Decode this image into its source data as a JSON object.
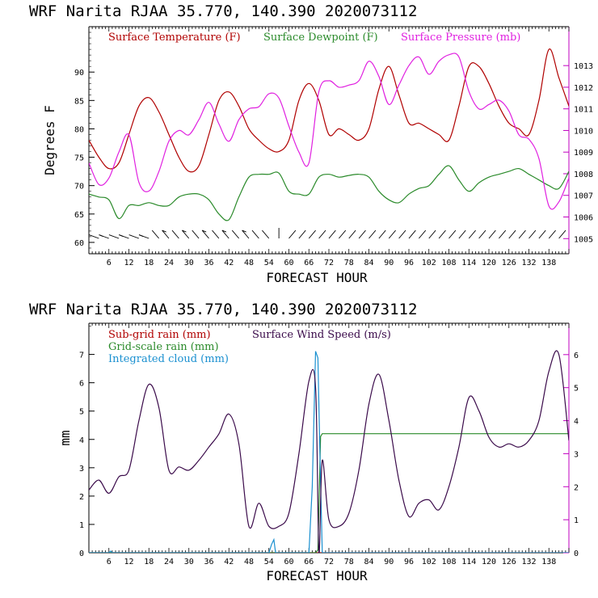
{
  "chart_data": [
    {
      "type": "line",
      "title": "WRF   Narita RJAA    35.770, 140.390   2020073112",
      "xlabel": "FORECAST HOUR",
      "ylabel": "Degrees F",
      "xlim": [
        0,
        144
      ],
      "ylim": [
        58,
        98
      ],
      "y2lim": [
        1004.3,
        1014.8
      ],
      "xticks": [
        "6",
        "12",
        "18",
        "24",
        "30",
        "36",
        "42",
        "48",
        "54",
        "60",
        "66",
        "72",
        "78",
        "84",
        "90",
        "96",
        "102",
        "108",
        "114",
        "120",
        "126",
        "132",
        "138"
      ],
      "yticks": [
        "60",
        "65",
        "70",
        "75",
        "80",
        "85",
        "90"
      ],
      "y2ticks": [
        "1005",
        "1006",
        "1007",
        "1008",
        "1009",
        "1010",
        "1011",
        "1012",
        "1013"
      ],
      "legend": "top",
      "grid": false,
      "series": [
        {
          "name": "Surface Temperature (F)",
          "color": "#b00000",
          "axis": "left",
          "x": [
            0,
            3,
            6,
            9,
            12,
            15,
            18,
            21,
            24,
            27,
            30,
            33,
            36,
            39,
            42,
            45,
            48,
            51,
            54,
            57,
            60,
            63,
            66,
            69,
            72,
            75,
            78,
            81,
            84,
            87,
            90,
            93,
            96,
            99,
            102,
            105,
            108,
            111,
            114,
            117,
            120,
            123,
            126,
            129,
            132,
            135,
            138,
            141,
            144
          ],
          "y": [
            78,
            75,
            73,
            74,
            79,
            84,
            85.5,
            83,
            79,
            75,
            72.5,
            73.5,
            79,
            85,
            86.5,
            84,
            80,
            78,
            76.5,
            76,
            78,
            85,
            88,
            85,
            79,
            80,
            79,
            78,
            80,
            87,
            91,
            86,
            81,
            81,
            80,
            79,
            78,
            84,
            91,
            91,
            88,
            84,
            81,
            80,
            79,
            85,
            94,
            89,
            84
          ]
        },
        {
          "name": "Surface Dewpoint (F)",
          "color": "#2a8a2a",
          "axis": "left",
          "x": [
            0,
            3,
            6,
            9,
            12,
            15,
            18,
            21,
            24,
            27,
            30,
            33,
            36,
            39,
            42,
            45,
            48,
            51,
            54,
            57,
            60,
            63,
            66,
            69,
            72,
            75,
            78,
            81,
            84,
            87,
            90,
            93,
            96,
            99,
            102,
            105,
            108,
            111,
            114,
            117,
            120,
            123,
            126,
            129,
            132,
            135,
            138,
            141,
            144
          ],
          "y": [
            68.5,
            68,
            67.5,
            64.2,
            66.5,
            66.5,
            67,
            66.5,
            66.5,
            68,
            68.5,
            68.5,
            67.5,
            65,
            64,
            68,
            71.5,
            72,
            72,
            72.2,
            69,
            68.5,
            68.5,
            71.5,
            72,
            71.5,
            71.8,
            72,
            71.5,
            69,
            67.5,
            67,
            68.5,
            69.5,
            70,
            72,
            73.5,
            71,
            69,
            70.5,
            71.5,
            72,
            72.5,
            73,
            72,
            71,
            70,
            69.5,
            72.5
          ]
        },
        {
          "name": "Surface Pressure (mb)",
          "color": "#e020e0",
          "axis": "right",
          "x": [
            0,
            3,
            6,
            9,
            12,
            15,
            18,
            21,
            24,
            27,
            30,
            33,
            36,
            39,
            42,
            45,
            48,
            51,
            54,
            57,
            60,
            63,
            66,
            69,
            72,
            75,
            78,
            81,
            84,
            87,
            90,
            93,
            96,
            99,
            102,
            105,
            108,
            111,
            114,
            117,
            120,
            123,
            126,
            129,
            132,
            135,
            138,
            141,
            144
          ],
          "y": [
            1008.5,
            1007.5,
            1007.8,
            1009,
            1009.8,
            1007.6,
            1007.2,
            1008.1,
            1009.5,
            1010,
            1009.8,
            1010.5,
            1011.3,
            1010.3,
            1009.5,
            1010.5,
            1011,
            1011.1,
            1011.7,
            1011.5,
            1010.2,
            1009,
            1008.5,
            1011.8,
            1012.3,
            1012,
            1012.1,
            1012.3,
            1013.2,
            1012.5,
            1011.2,
            1012.1,
            1013,
            1013.4,
            1012.6,
            1013.2,
            1013.5,
            1013.4,
            1011.8,
            1011,
            1011.2,
            1011.4,
            1010.9,
            1009.8,
            1009.6,
            1008.7,
            1006.5,
            1006.7,
            1007.8
          ]
        }
      ]
    },
    {
      "type": "line",
      "title": "WRF   Narita RJAA    35.770, 140.390   2020073112",
      "xlabel": "FORECAST HOUR",
      "ylabel": "mm",
      "xlim": [
        0,
        144
      ],
      "ylim": [
        0,
        8.1
      ],
      "y2lim": [
        0,
        6.95
      ],
      "xticks": [
        "6",
        "12",
        "18",
        "24",
        "30",
        "36",
        "42",
        "48",
        "54",
        "60",
        "66",
        "72",
        "78",
        "84",
        "90",
        "96",
        "102",
        "108",
        "114",
        "120",
        "126",
        "132",
        "138"
      ],
      "yticks": [
        "0",
        "1",
        "2",
        "3",
        "4",
        "5",
        "6",
        "7"
      ],
      "y2ticks": [
        "0",
        "1",
        "2",
        "3",
        "4",
        "5",
        "6"
      ],
      "legend": "top-left",
      "grid": false,
      "series": [
        {
          "name": "Sub-grid rain (mm)",
          "color": "#b00000",
          "axis": "left",
          "x": [
            0,
            144
          ],
          "y": [
            0,
            0
          ]
        },
        {
          "name": "Grid-scale rain (mm)",
          "color": "#2a8a2a",
          "axis": "left",
          "x": [
            0,
            68,
            68.7,
            69.5,
            70,
            144
          ],
          "y": [
            0,
            0,
            0.1,
            4.1,
            4.2,
            4.2
          ]
        },
        {
          "name": "Integrated cloud (mm)",
          "color": "#1a90d0",
          "axis": "right",
          "x": [
            0,
            6,
            6.5,
            7,
            54,
            54.8,
            55.5,
            56,
            66,
            67,
            68,
            68.7,
            69.3,
            70,
            144
          ],
          "y": [
            0,
            0,
            0.05,
            0,
            0,
            0.25,
            0.4,
            0,
            0,
            2,
            6.1,
            5.9,
            3,
            0,
            0
          ]
        },
        {
          "name": "Surface Wind Speed (m/s)",
          "color": "#3a0a4a",
          "axis": "right",
          "x": [
            0,
            3,
            6,
            9,
            12,
            15,
            18,
            21,
            24,
            27,
            30,
            33,
            36,
            39,
            42,
            45,
            48,
            51,
            54,
            57,
            60,
            63,
            66,
            68,
            69,
            70,
            72,
            75,
            78,
            81,
            84,
            87,
            90,
            93,
            96,
            99,
            102,
            105,
            108,
            111,
            114,
            117,
            120,
            123,
            126,
            129,
            132,
            135,
            138,
            141,
            144
          ],
          "y": [
            1.9,
            2.2,
            1.8,
            2.3,
            2.5,
            4,
            5.1,
            4.4,
            2.5,
            2.6,
            2.5,
            2.8,
            3.2,
            3.6,
            4.2,
            3.3,
            0.8,
            1.5,
            0.8,
            0.8,
            1.2,
            3,
            5.2,
            5,
            0,
            2.8,
            1,
            0.8,
            1.2,
            2.5,
            4.5,
            5.4,
            4,
            2.2,
            1.1,
            1.5,
            1.6,
            1.3,
            2,
            3.2,
            4.7,
            4.3,
            3.5,
            3.2,
            3.3,
            3.2,
            3.4,
            4,
            5.5,
            6,
            3.4
          ]
        }
      ]
    }
  ]
}
